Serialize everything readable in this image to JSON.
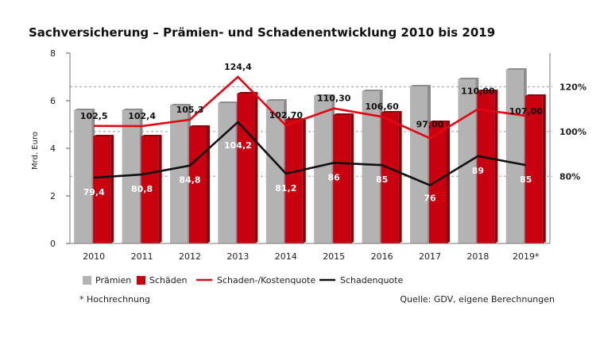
{
  "chart_data": {
    "type": "bar",
    "title": "Sachversicherung – Prämien- und Schadenentwicklung 2010 bis 2019",
    "ylabel": "Mrd. Euro",
    "categories": [
      "2010",
      "2011",
      "2012",
      "2013",
      "2014",
      "2015",
      "2016",
      "2017",
      "2018",
      "2019*"
    ],
    "ylim": [
      0,
      8
    ],
    "yticks": [
      "0",
      "2",
      "4",
      "6",
      "8"
    ],
    "y2lim": [
      50,
      135
    ],
    "y2ticks": [
      {
        "value": 80,
        "label": "80%"
      },
      {
        "value": 100,
        "label": "100%"
      },
      {
        "value": 120,
        "label": "120%"
      }
    ],
    "grid": "dashed at right-axis ticks",
    "colors": {
      "praemien": "#b3b3b3",
      "schaeden": "#c8000f",
      "kostenquote": "#e30613",
      "schadenquote": "#111111"
    },
    "series": [
      {
        "name": "Prämien",
        "kind": "bar",
        "axis": "left",
        "values": [
          5.6,
          5.6,
          5.8,
          5.9,
          6.0,
          6.2,
          6.4,
          6.6,
          6.9,
          7.3
        ]
      },
      {
        "name": "Schäden",
        "kind": "bar",
        "axis": "left",
        "values": [
          4.5,
          4.5,
          4.9,
          6.3,
          5.2,
          5.4,
          5.5,
          5.1,
          6.4,
          6.2
        ]
      },
      {
        "name": "Schaden-/Kostenquote",
        "kind": "line",
        "axis": "right",
        "values": [
          102.5,
          102.4,
          105.3,
          124.4,
          102.7,
          110.3,
          106.6,
          97.0,
          110.0,
          107.0
        ],
        "labels": [
          "102,5",
          "102,4",
          "105,3",
          "124,4",
          "102,70",
          "110,30",
          "106,60",
          "97,00",
          "110,00",
          "107,00"
        ]
      },
      {
        "name": "Schadenquote",
        "kind": "line",
        "axis": "right",
        "values": [
          79.4,
          80.8,
          84.8,
          104.2,
          81.2,
          86.0,
          85.0,
          76.0,
          89.0,
          85.0
        ],
        "labels": [
          "79,4",
          "80,8",
          "84,8",
          "104,2",
          "81,2",
          "86",
          "85",
          "76",
          "89",
          "85"
        ]
      }
    ],
    "legend": {
      "placement": "bottom",
      "items": [
        "Prämien",
        "Schäden",
        "Schaden-/Kostenquote",
        "Schadenquote"
      ]
    }
  },
  "footnote": "* Hochrechnung",
  "source": "Quelle: GDV, eigene Berechnungen"
}
